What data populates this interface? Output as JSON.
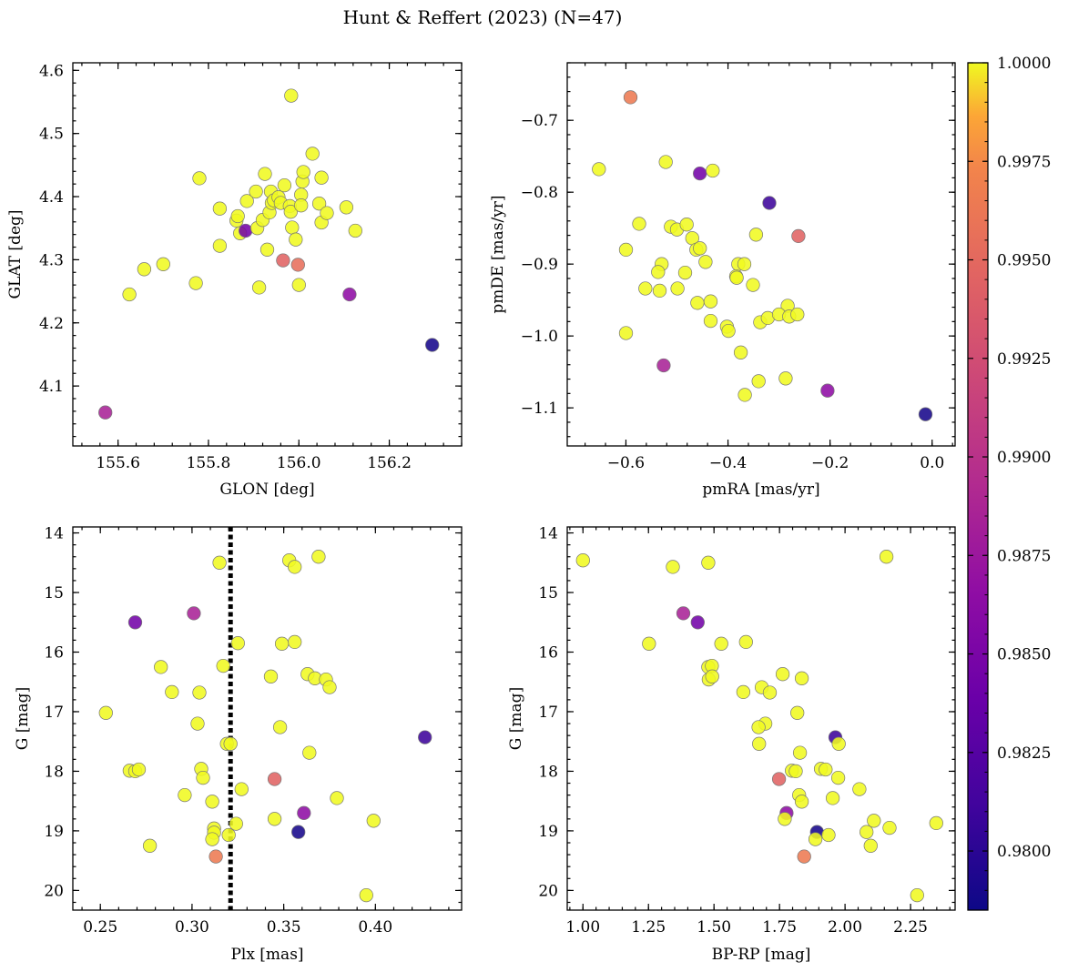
{
  "title": "Hunt & Reffert (2023) (N=47)",
  "colorbar": {
    "colormap": "plasma",
    "range": [
      0.9785,
      1.0
    ],
    "ticks": [
      0.98,
      0.9825,
      0.985,
      0.9875,
      0.99,
      0.9925,
      0.995,
      0.9975,
      1.0
    ],
    "tick_labels": [
      "0.9800",
      "0.9825",
      "0.9850",
      "0.9875",
      "0.9900",
      "0.9925",
      "0.9950",
      "0.9975",
      "1.0000"
    ]
  },
  "panel_labels": {
    "p1": {
      "x": "GLON [deg]",
      "y": "GLAT [deg]"
    },
    "p2": {
      "x": "pmRA [mas/yr]",
      "y": "pmDE [mas/yr]"
    },
    "p3": {
      "x": "Plx [mas]",
      "y": "G [mag]"
    },
    "p4": {
      "x": "BP-RP [mag]",
      "y": "G [mag]"
    }
  },
  "chart_data": [
    {
      "type": "scatter",
      "xlabel": "GLON [deg]",
      "ylabel": "GLAT [deg]",
      "xlim": [
        155.5,
        156.36
      ],
      "ylim": [
        4.005,
        4.612
      ],
      "xticks": [
        155.6,
        155.8,
        156.0,
        156.2
      ],
      "xtick_labels": [
        "155.6",
        "155.8",
        "156.0",
        "156.2"
      ],
      "yticks": [
        4.1,
        4.2,
        4.3,
        4.4,
        4.5,
        4.6
      ],
      "ytick_labels": [
        "4.1",
        "4.2",
        "4.3",
        "4.4",
        "4.5",
        "4.6"
      ],
      "points": [
        {
          "x": 155.572,
          "y": 4.058,
          "c": 0.9885
        },
        {
          "x": 155.625,
          "y": 4.245,
          "c": 1.0
        },
        {
          "x": 155.658,
          "y": 4.285,
          "c": 1.0
        },
        {
          "x": 155.7,
          "y": 4.293,
          "c": 1.0
        },
        {
          "x": 155.772,
          "y": 4.263,
          "c": 1.0
        },
        {
          "x": 155.78,
          "y": 4.429,
          "c": 1.0
        },
        {
          "x": 155.825,
          "y": 4.381,
          "c": 1.0
        },
        {
          "x": 155.825,
          "y": 4.322,
          "c": 1.0
        },
        {
          "x": 155.862,
          "y": 4.362,
          "c": 1.0
        },
        {
          "x": 155.865,
          "y": 4.369,
          "c": 1.0
        },
        {
          "x": 155.87,
          "y": 4.342,
          "c": 1.0
        },
        {
          "x": 155.882,
          "y": 4.346,
          "c": 0.9845
        },
        {
          "x": 155.885,
          "y": 4.393,
          "c": 1.0
        },
        {
          "x": 155.905,
          "y": 4.408,
          "c": 1.0
        },
        {
          "x": 155.908,
          "y": 4.35,
          "c": 1.0
        },
        {
          "x": 155.912,
          "y": 4.256,
          "c": 1.0
        },
        {
          "x": 155.92,
          "y": 4.363,
          "c": 1.0
        },
        {
          "x": 155.925,
          "y": 4.436,
          "c": 1.0
        },
        {
          "x": 155.93,
          "y": 4.316,
          "c": 1.0
        },
        {
          "x": 155.935,
          "y": 4.375,
          "c": 1.0
        },
        {
          "x": 155.938,
          "y": 4.408,
          "c": 1.0
        },
        {
          "x": 155.94,
          "y": 4.39,
          "c": 1.0
        },
        {
          "x": 155.945,
          "y": 4.394,
          "c": 1.0
        },
        {
          "x": 155.955,
          "y": 4.399,
          "c": 1.0
        },
        {
          "x": 155.96,
          "y": 4.39,
          "c": 1.0
        },
        {
          "x": 155.965,
          "y": 4.299,
          "c": 0.9945
        },
        {
          "x": 155.968,
          "y": 4.418,
          "c": 1.0
        },
        {
          "x": 155.98,
          "y": 4.385,
          "c": 1.0
        },
        {
          "x": 155.982,
          "y": 4.376,
          "c": 1.0
        },
        {
          "x": 155.983,
          "y": 4.56,
          "c": 1.0
        },
        {
          "x": 155.985,
          "y": 4.351,
          "c": 1.0
        },
        {
          "x": 155.993,
          "y": 4.332,
          "c": 1.0
        },
        {
          "x": 155.998,
          "y": 4.292,
          "c": 0.9955
        },
        {
          "x": 156.0,
          "y": 4.26,
          "c": 1.0
        },
        {
          "x": 156.005,
          "y": 4.403,
          "c": 1.0
        },
        {
          "x": 156.005,
          "y": 4.386,
          "c": 1.0
        },
        {
          "x": 156.008,
          "y": 4.424,
          "c": 1.0
        },
        {
          "x": 156.01,
          "y": 4.439,
          "c": 1.0
        },
        {
          "x": 156.03,
          "y": 4.468,
          "c": 1.0
        },
        {
          "x": 156.045,
          "y": 4.389,
          "c": 1.0
        },
        {
          "x": 156.05,
          "y": 4.43,
          "c": 1.0
        },
        {
          "x": 156.05,
          "y": 4.359,
          "c": 1.0
        },
        {
          "x": 156.062,
          "y": 4.374,
          "c": 1.0
        },
        {
          "x": 156.105,
          "y": 4.383,
          "c": 1.0
        },
        {
          "x": 156.112,
          "y": 4.245,
          "c": 0.9865
        },
        {
          "x": 156.125,
          "y": 4.346,
          "c": 1.0
        },
        {
          "x": 156.295,
          "y": 4.165,
          "c": 0.979
        }
      ]
    },
    {
      "type": "scatter",
      "xlabel": "pmRA [mas/yr]",
      "ylabel": "pmDE [mas/yr]",
      "xlim": [
        -0.715,
        0.045
      ],
      "ylim": [
        -1.153,
        -0.62
      ],
      "xticks": [
        -0.6,
        -0.4,
        -0.2,
        0.0
      ],
      "xtick_labels": [
        "−0.6",
        "−0.4",
        "−0.2",
        "0.0"
      ],
      "yticks": [
        -1.1,
        -1.0,
        -0.9,
        -0.8,
        -0.7
      ],
      "ytick_labels": [
        "−1.1",
        "−1.0",
        "−0.9",
        "−0.8",
        "−0.7"
      ],
      "points": [
        {
          "x": -0.653,
          "y": -0.768,
          "c": 1.0
        },
        {
          "x": -0.591,
          "y": -0.668,
          "c": 0.9965
        },
        {
          "x": -0.522,
          "y": -0.758,
          "c": 1.0
        },
        {
          "x": -0.455,
          "y": -0.774,
          "c": 0.9845
        },
        {
          "x": -0.43,
          "y": -0.77,
          "c": 1.0
        },
        {
          "x": -0.319,
          "y": -0.815,
          "c": 0.981
        },
        {
          "x": -0.262,
          "y": -0.861,
          "c": 0.9945
        },
        {
          "x": -0.574,
          "y": -0.844,
          "c": 1.0
        },
        {
          "x": -0.512,
          "y": -0.848,
          "c": 1.0
        },
        {
          "x": -0.5,
          "y": -0.852,
          "c": 1.0
        },
        {
          "x": -0.481,
          "y": -0.845,
          "c": 1.0
        },
        {
          "x": -0.47,
          "y": -0.864,
          "c": 1.0
        },
        {
          "x": -0.462,
          "y": -0.88,
          "c": 1.0
        },
        {
          "x": -0.455,
          "y": -0.878,
          "c": 1.0
        },
        {
          "x": -0.345,
          "y": -0.859,
          "c": 1.0
        },
        {
          "x": -0.6,
          "y": -0.88,
          "c": 1.0
        },
        {
          "x": -0.53,
          "y": -0.9,
          "c": 1.0
        },
        {
          "x": -0.537,
          "y": -0.911,
          "c": 1.0
        },
        {
          "x": -0.484,
          "y": -0.912,
          "c": 1.0
        },
        {
          "x": -0.444,
          "y": -0.897,
          "c": 1.0
        },
        {
          "x": -0.38,
          "y": -0.9,
          "c": 1.0
        },
        {
          "x": -0.368,
          "y": -0.9,
          "c": 1.0
        },
        {
          "x": -0.384,
          "y": -0.917,
          "c": 1.0
        },
        {
          "x": -0.383,
          "y": -0.919,
          "c": 1.0
        },
        {
          "x": -0.562,
          "y": -0.934,
          "c": 1.0
        },
        {
          "x": -0.534,
          "y": -0.937,
          "c": 1.0
        },
        {
          "x": -0.499,
          "y": -0.934,
          "c": 1.0
        },
        {
          "x": -0.46,
          "y": -0.954,
          "c": 1.0
        },
        {
          "x": -0.434,
          "y": -0.952,
          "c": 1.0
        },
        {
          "x": -0.351,
          "y": -0.929,
          "c": 1.0
        },
        {
          "x": -0.283,
          "y": -0.958,
          "c": 1.0
        },
        {
          "x": -0.434,
          "y": -0.979,
          "c": 1.0
        },
        {
          "x": -0.402,
          "y": -0.987,
          "c": 1.0
        },
        {
          "x": -0.399,
          "y": -0.993,
          "c": 1.0
        },
        {
          "x": -0.337,
          "y": -0.981,
          "c": 1.0
        },
        {
          "x": -0.322,
          "y": -0.975,
          "c": 1.0
        },
        {
          "x": -0.3,
          "y": -0.97,
          "c": 1.0
        },
        {
          "x": -0.28,
          "y": -0.973,
          "c": 1.0
        },
        {
          "x": -0.264,
          "y": -0.97,
          "c": 1.0
        },
        {
          "x": -0.6,
          "y": -0.996,
          "c": 1.0
        },
        {
          "x": -0.375,
          "y": -1.023,
          "c": 1.0
        },
        {
          "x": -0.526,
          "y": -1.041,
          "c": 0.9885
        },
        {
          "x": -0.34,
          "y": -1.063,
          "c": 1.0
        },
        {
          "x": -0.287,
          "y": -1.059,
          "c": 1.0
        },
        {
          "x": -0.205,
          "y": -1.076,
          "c": 0.9865
        },
        {
          "x": -0.367,
          "y": -1.082,
          "c": 1.0
        },
        {
          "x": -0.013,
          "y": -1.109,
          "c": 0.979
        }
      ]
    },
    {
      "type": "scatter",
      "xlabel": "Plx [mas]",
      "ylabel": "G [mag]",
      "xlim": [
        0.235,
        0.447
      ],
      "ylim": [
        20.33,
        13.9
      ],
      "y_inverted": true,
      "xticks": [
        0.25,
        0.3,
        0.35,
        0.4
      ],
      "xtick_labels": [
        "0.25",
        "0.30",
        "0.35",
        "0.40"
      ],
      "yticks": [
        14,
        15,
        16,
        17,
        18,
        19,
        20
      ],
      "ytick_labels": [
        "14",
        "15",
        "16",
        "17",
        "18",
        "19",
        "20"
      ],
      "vline": {
        "x": 0.321,
        "style": "dotted"
      },
      "points": [
        {
          "x": 0.369,
          "y": 14.4,
          "c": 1.0
        },
        {
          "x": 0.353,
          "y": 14.46,
          "c": 1.0
        },
        {
          "x": 0.315,
          "y": 14.5,
          "c": 1.0
        },
        {
          "x": 0.356,
          "y": 14.57,
          "c": 1.0
        },
        {
          "x": 0.301,
          "y": 15.35,
          "c": 0.9885
        },
        {
          "x": 0.269,
          "y": 15.5,
          "c": 0.9845
        },
        {
          "x": 0.356,
          "y": 15.83,
          "c": 1.0
        },
        {
          "x": 0.349,
          "y": 15.86,
          "c": 1.0
        },
        {
          "x": 0.325,
          "y": 15.85,
          "c": 1.0
        },
        {
          "x": 0.317,
          "y": 16.23,
          "c": 1.0
        },
        {
          "x": 0.283,
          "y": 16.25,
          "c": 1.0
        },
        {
          "x": 0.343,
          "y": 16.41,
          "c": 1.0
        },
        {
          "x": 0.363,
          "y": 16.37,
          "c": 1.0
        },
        {
          "x": 0.367,
          "y": 16.44,
          "c": 1.0
        },
        {
          "x": 0.373,
          "y": 16.46,
          "c": 1.0
        },
        {
          "x": 0.375,
          "y": 16.59,
          "c": 1.0
        },
        {
          "x": 0.289,
          "y": 16.67,
          "c": 1.0
        },
        {
          "x": 0.304,
          "y": 16.68,
          "c": 1.0
        },
        {
          "x": 0.253,
          "y": 17.02,
          "c": 1.0
        },
        {
          "x": 0.303,
          "y": 17.2,
          "c": 1.0
        },
        {
          "x": 0.348,
          "y": 17.26,
          "c": 1.0
        },
        {
          "x": 0.427,
          "y": 17.43,
          "c": 0.981
        },
        {
          "x": 0.319,
          "y": 17.54,
          "c": 1.0
        },
        {
          "x": 0.321,
          "y": 17.54,
          "c": 1.0
        },
        {
          "x": 0.364,
          "y": 17.69,
          "c": 1.0
        },
        {
          "x": 0.305,
          "y": 17.96,
          "c": 1.0
        },
        {
          "x": 0.266,
          "y": 17.99,
          "c": 1.0
        },
        {
          "x": 0.269,
          "y": 18.0,
          "c": 1.0
        },
        {
          "x": 0.271,
          "y": 17.97,
          "c": 1.0
        },
        {
          "x": 0.306,
          "y": 18.11,
          "c": 1.0
        },
        {
          "x": 0.345,
          "y": 18.13,
          "c": 0.9945
        },
        {
          "x": 0.327,
          "y": 18.3,
          "c": 1.0
        },
        {
          "x": 0.296,
          "y": 18.4,
          "c": 1.0
        },
        {
          "x": 0.379,
          "y": 18.45,
          "c": 1.0
        },
        {
          "x": 0.311,
          "y": 18.51,
          "c": 1.0
        },
        {
          "x": 0.361,
          "y": 18.7,
          "c": 0.9865
        },
        {
          "x": 0.345,
          "y": 18.8,
          "c": 1.0
        },
        {
          "x": 0.399,
          "y": 18.83,
          "c": 1.0
        },
        {
          "x": 0.324,
          "y": 18.88,
          "c": 1.0
        },
        {
          "x": 0.312,
          "y": 18.96,
          "c": 1.0
        },
        {
          "x": 0.312,
          "y": 19.03,
          "c": 1.0
        },
        {
          "x": 0.358,
          "y": 19.02,
          "c": 0.979
        },
        {
          "x": 0.32,
          "y": 19.07,
          "c": 1.0
        },
        {
          "x": 0.311,
          "y": 19.14,
          "c": 1.0
        },
        {
          "x": 0.277,
          "y": 19.25,
          "c": 1.0
        },
        {
          "x": 0.313,
          "y": 19.43,
          "c": 0.9965
        },
        {
          "x": 0.395,
          "y": 20.08,
          "c": 1.0
        }
      ]
    },
    {
      "type": "scatter",
      "xlabel": "BP-RP [mag]",
      "ylabel": "G [mag]",
      "xlim": [
        0.94,
        2.42
      ],
      "ylim": [
        20.33,
        13.9
      ],
      "y_inverted": true,
      "xticks": [
        1.0,
        1.25,
        1.5,
        1.75,
        2.0,
        2.25
      ],
      "xtick_labels": [
        "1.00",
        "1.25",
        "1.50",
        "1.75",
        "2.00",
        "2.25"
      ],
      "yticks": [
        14,
        15,
        16,
        17,
        18,
        19,
        20
      ],
      "ytick_labels": [
        "14",
        "15",
        "16",
        "17",
        "18",
        "19",
        "20"
      ],
      "points": [
        {
          "x": 1.0,
          "y": 14.46,
          "c": 1.0
        },
        {
          "x": 1.343,
          "y": 14.57,
          "c": 1.0
        },
        {
          "x": 1.478,
          "y": 14.5,
          "c": 1.0
        },
        {
          "x": 2.158,
          "y": 14.4,
          "c": 1.0
        },
        {
          "x": 1.383,
          "y": 15.35,
          "c": 0.9885
        },
        {
          "x": 1.438,
          "y": 15.5,
          "c": 0.9845
        },
        {
          "x": 1.252,
          "y": 15.86,
          "c": 1.0
        },
        {
          "x": 1.528,
          "y": 15.86,
          "c": 1.0
        },
        {
          "x": 1.622,
          "y": 15.83,
          "c": 1.0
        },
        {
          "x": 1.478,
          "y": 16.25,
          "c": 1.0
        },
        {
          "x": 1.492,
          "y": 16.23,
          "c": 1.0
        },
        {
          "x": 1.48,
          "y": 16.46,
          "c": 1.0
        },
        {
          "x": 1.493,
          "y": 16.41,
          "c": 1.0
        },
        {
          "x": 1.762,
          "y": 16.37,
          "c": 1.0
        },
        {
          "x": 1.835,
          "y": 16.44,
          "c": 1.0
        },
        {
          "x": 1.682,
          "y": 16.59,
          "c": 1.0
        },
        {
          "x": 1.612,
          "y": 16.67,
          "c": 1.0
        },
        {
          "x": 1.713,
          "y": 16.68,
          "c": 1.0
        },
        {
          "x": 1.818,
          "y": 17.02,
          "c": 1.0
        },
        {
          "x": 1.696,
          "y": 17.2,
          "c": 1.0
        },
        {
          "x": 1.67,
          "y": 17.26,
          "c": 1.0
        },
        {
          "x": 1.963,
          "y": 17.43,
          "c": 0.981
        },
        {
          "x": 1.672,
          "y": 17.54,
          "c": 1.0
        },
        {
          "x": 1.976,
          "y": 17.54,
          "c": 1.0
        },
        {
          "x": 1.828,
          "y": 17.69,
          "c": 1.0
        },
        {
          "x": 1.908,
          "y": 17.96,
          "c": 1.0
        },
        {
          "x": 1.926,
          "y": 17.97,
          "c": 1.0
        },
        {
          "x": 1.797,
          "y": 17.99,
          "c": 1.0
        },
        {
          "x": 1.812,
          "y": 18.0,
          "c": 1.0
        },
        {
          "x": 1.974,
          "y": 18.11,
          "c": 1.0
        },
        {
          "x": 1.748,
          "y": 18.13,
          "c": 0.9945
        },
        {
          "x": 2.055,
          "y": 18.3,
          "c": 1.0
        },
        {
          "x": 1.825,
          "y": 18.4,
          "c": 1.0
        },
        {
          "x": 1.953,
          "y": 18.45,
          "c": 1.0
        },
        {
          "x": 1.835,
          "y": 18.51,
          "c": 1.0
        },
        {
          "x": 1.777,
          "y": 18.7,
          "c": 0.9865
        },
        {
          "x": 1.77,
          "y": 18.8,
          "c": 1.0
        },
        {
          "x": 2.11,
          "y": 18.83,
          "c": 1.0
        },
        {
          "x": 2.348,
          "y": 18.87,
          "c": 1.0
        },
        {
          "x": 2.17,
          "y": 18.95,
          "c": 1.0
        },
        {
          "x": 1.893,
          "y": 19.02,
          "c": 0.979
        },
        {
          "x": 2.082,
          "y": 19.02,
          "c": 1.0
        },
        {
          "x": 1.937,
          "y": 19.07,
          "c": 1.0
        },
        {
          "x": 1.887,
          "y": 19.14,
          "c": 1.0
        },
        {
          "x": 2.098,
          "y": 19.25,
          "c": 1.0
        },
        {
          "x": 1.844,
          "y": 19.43,
          "c": 0.9965
        },
        {
          "x": 2.275,
          "y": 20.08,
          "c": 1.0
        }
      ]
    }
  ]
}
